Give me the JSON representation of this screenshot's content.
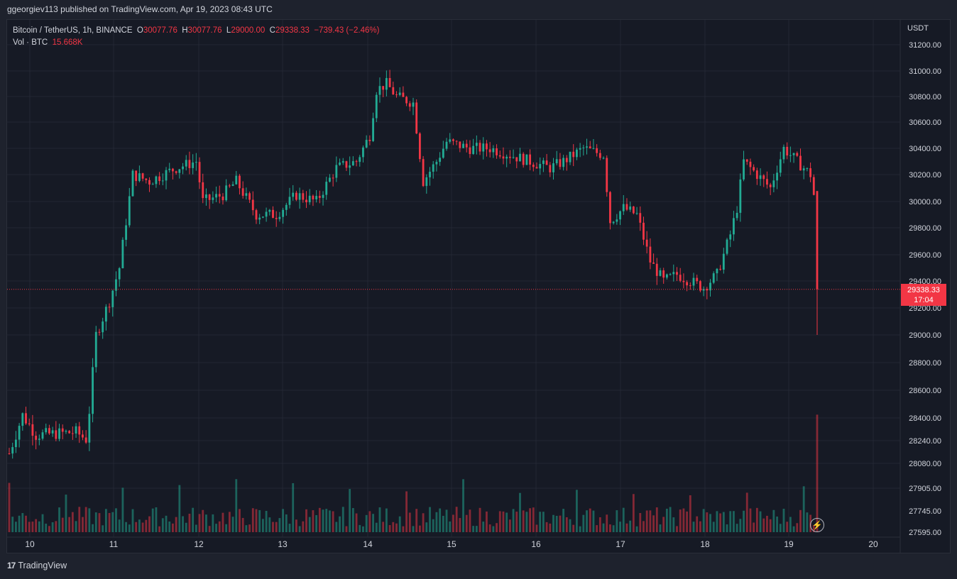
{
  "header": {
    "publisher_line": "ggeorgiev113 published on TradingView.com, Apr 19, 2023 08:43 UTC"
  },
  "legend": {
    "symbol": "Bitcoin / TetherUS, 1h, BINANCE",
    "open_label": "O",
    "open": "30077.76",
    "high_label": "H",
    "high": "30077.76",
    "low_label": "L",
    "low": "29000.00",
    "close_label": "C",
    "close": "29338.33",
    "change": "−739.43 (−2.46%)",
    "vol_label": "Vol · BTC",
    "vol_value": "15.668K"
  },
  "price_axis": {
    "unit": "USDT",
    "ticks": [
      "31200.00",
      "31000.00",
      "30800.00",
      "30600.00",
      "30400.00",
      "30200.00",
      "30000.00",
      "29800.00",
      "29600.00",
      "29400.00",
      "29200.00",
      "29000.00",
      "28800.00",
      "28600.00",
      "28400.00",
      "28240.00",
      "28080.00",
      "27905.00",
      "27745.00",
      "27595.00"
    ]
  },
  "last_price_tag": {
    "price": "29338.33",
    "countdown": "17:04"
  },
  "time_axis": {
    "labels": [
      "10",
      "11",
      "12",
      "13",
      "14",
      "15",
      "16",
      "17",
      "18",
      "19",
      "20"
    ]
  },
  "footer": {
    "brand": "TradingView",
    "logo_text": "17"
  },
  "colors": {
    "up": "#22ab94",
    "down": "#f23645",
    "background": "#161a25",
    "grid": "#232733",
    "text": "#d1d4dc"
  },
  "chart_data": {
    "type": "candlestick",
    "symbol": "Bitcoin / TetherUS",
    "interval": "1h",
    "exchange": "BINANCE",
    "y_unit": "USDT",
    "ylim": [
      27595,
      31300
    ],
    "last_price": 29338.33,
    "x_day_labels": [
      "10",
      "11",
      "12",
      "13",
      "14",
      "15",
      "16",
      "17",
      "18",
      "19",
      "20"
    ],
    "price_keypoints": [
      [
        0,
        28150
      ],
      [
        4,
        28420
      ],
      [
        8,
        28280
      ],
      [
        20,
        28300
      ],
      [
        23,
        28250
      ],
      [
        24,
        28450
      ],
      [
        26,
        29000
      ],
      [
        30,
        29250
      ],
      [
        33,
        29500
      ],
      [
        37,
        30200
      ],
      [
        42,
        30150
      ],
      [
        50,
        30250
      ],
      [
        56,
        30300
      ],
      [
        58,
        30000
      ],
      [
        64,
        30050
      ],
      [
        68,
        30150
      ],
      [
        74,
        29900
      ],
      [
        80,
        29900
      ],
      [
        86,
        30050
      ],
      [
        92,
        30000
      ],
      [
        98,
        30250
      ],
      [
        104,
        30300
      ],
      [
        108,
        30500
      ],
      [
        110,
        30850
      ],
      [
        113,
        30900
      ],
      [
        116,
        30800
      ],
      [
        121,
        30750
      ],
      [
        124,
        30150
      ],
      [
        128,
        30300
      ],
      [
        131,
        30450
      ],
      [
        138,
        30400
      ],
      [
        144,
        30400
      ],
      [
        150,
        30350
      ],
      [
        156,
        30300
      ],
      [
        162,
        30250
      ],
      [
        166,
        30300
      ],
      [
        172,
        30400
      ],
      [
        178,
        30350
      ],
      [
        180,
        29850
      ],
      [
        184,
        29950
      ],
      [
        188,
        29900
      ],
      [
        192,
        29550
      ],
      [
        196,
        29400
      ],
      [
        200,
        29450
      ],
      [
        204,
        29400
      ],
      [
        208,
        29350
      ],
      [
        212,
        29450
      ],
      [
        216,
        29750
      ],
      [
        218,
        29950
      ],
      [
        220,
        30300
      ],
      [
        224,
        30200
      ],
      [
        228,
        30100
      ],
      [
        232,
        30400
      ],
      [
        236,
        30300
      ],
      [
        240,
        30200
      ],
      [
        241,
        30050
      ]
    ],
    "last_candle": {
      "open": 30077.76,
      "high": 30077.76,
      "low": 29000.0,
      "close": 29338.33
    },
    "volume_last": "15.668K BTC"
  }
}
